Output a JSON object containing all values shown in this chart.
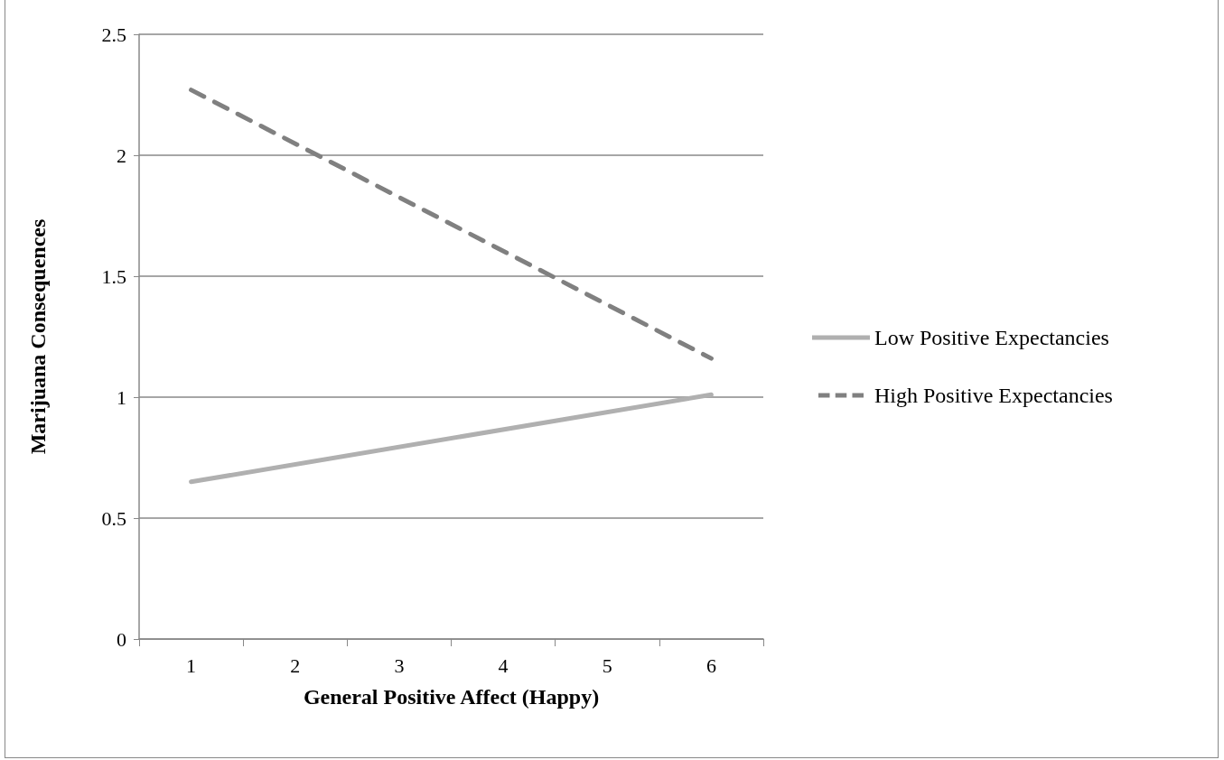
{
  "chart_data": {
    "type": "line",
    "xlabel": "General Positive Affect (Happy)",
    "ylabel": "Marijuana Consequences",
    "categories": [
      "1",
      "2",
      "3",
      "4",
      "5",
      "6"
    ],
    "series": [
      {
        "name": "Low Positive Expectancies",
        "color": "#b0b0b0",
        "line_style": "solid",
        "values": [
          0.65,
          null,
          null,
          null,
          null,
          1.01
        ]
      },
      {
        "name": "High Positive Expectancies",
        "color": "#808080",
        "line_style": "dashed",
        "values": [
          2.27,
          null,
          null,
          null,
          null,
          1.16
        ]
      }
    ],
    "ylim": [
      0,
      2.5
    ],
    "yticks": [
      0,
      0.5,
      1,
      1.5,
      2,
      2.5
    ],
    "grid": "y",
    "legend": "right",
    "marker": "none"
  }
}
